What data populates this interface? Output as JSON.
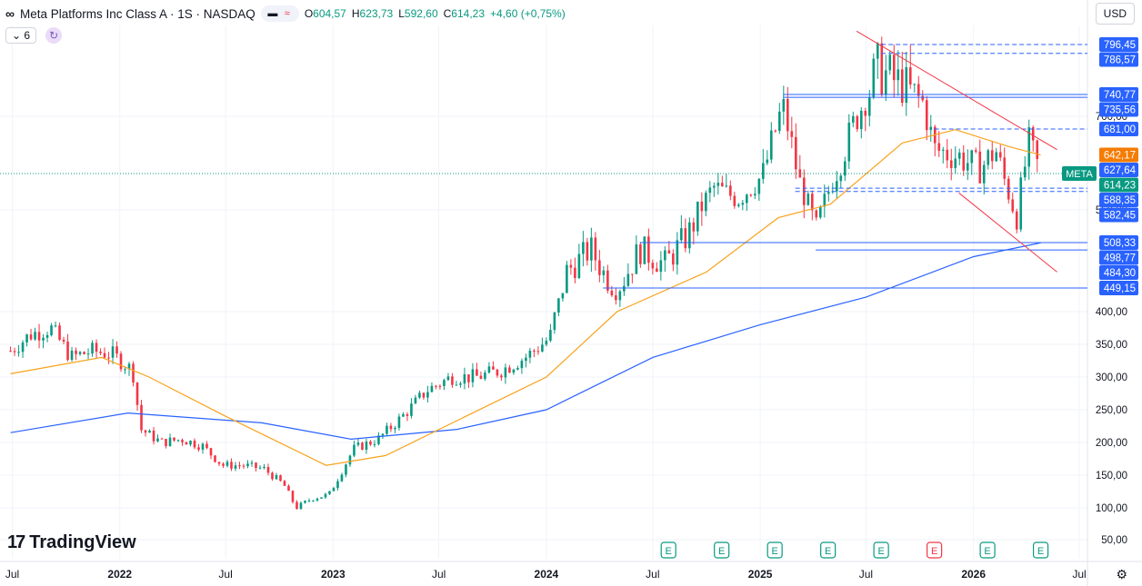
{
  "header": {
    "logo_text": "∞",
    "title": "Meta Platforms Inc Class A · 1S · NASDAQ",
    "pill_icons": [
      "▬",
      "≈"
    ],
    "ohlc": {
      "o_label": "O",
      "o": "604,57",
      "h_label": "H",
      "h": "623,73",
      "l_label": "L",
      "l": "592,60",
      "c_label": "C",
      "c": "614,23",
      "change": "+4,60 (+0,75%)"
    },
    "indicator_count": "6",
    "chevron": "⌄"
  },
  "currency": "USD",
  "branding": {
    "logo_glyph": "17",
    "name": "TradingView"
  },
  "settings_icon": "⚙",
  "colors": {
    "up": "#089981",
    "down": "#f23645",
    "ma50": "#f7a21b",
    "ma200": "#2962ff",
    "level": "#2962ff",
    "trend": "#f23645"
  },
  "chart_data": {
    "type": "candlestick",
    "symbol": "META",
    "ylim": [
      30,
      830
    ],
    "y_ticks": [
      50,
      100,
      150,
      200,
      250,
      300,
      350,
      400,
      550,
      700
    ],
    "y_tick_labels": [
      "50,00",
      "100,00",
      "150,00",
      "200,00",
      "250,00",
      "300,00",
      "350,00",
      "400,00",
      "550,00",
      "700,00"
    ],
    "x_ticks": [
      "2021-07",
      "2022-01",
      "2022-07",
      "2023-01",
      "2023-07",
      "2024-01",
      "2024-07",
      "2025-01",
      "2025-07",
      "2026-01",
      "2026-07"
    ],
    "x_tick_labels": [
      "Jul",
      "2022",
      "Jul",
      "2023",
      "Jul",
      "2024",
      "Jul",
      "2025",
      "Jul",
      "2026",
      "Jul"
    ],
    "close_path": [
      [
        "2021-06-28",
        340
      ],
      [
        "2021-08-01",
        365
      ],
      [
        "2021-09-05",
        375
      ],
      [
        "2021-10-10",
        330
      ],
      [
        "2021-11-14",
        340
      ],
      [
        "2021-12-19",
        335
      ],
      [
        "2022-01-23",
        310
      ],
      [
        "2022-02-06",
        220
      ],
      [
        "2022-03-13",
        200
      ],
      [
        "2022-04-17",
        205
      ],
      [
        "2022-05-22",
        195
      ],
      [
        "2022-06-26",
        165
      ],
      [
        "2022-07-31",
        165
      ],
      [
        "2022-09-04",
        160
      ],
      [
        "2022-10-09",
        135
      ],
      [
        "2022-10-30",
        100
      ],
      [
        "2022-11-27",
        115
      ],
      [
        "2022-12-25",
        120
      ],
      [
        "2023-02-05",
        190
      ],
      [
        "2023-03-19",
        205
      ],
      [
        "2023-04-30",
        240
      ],
      [
        "2023-06-11",
        280
      ],
      [
        "2023-07-23",
        300
      ],
      [
        "2023-09-03",
        300
      ],
      [
        "2023-10-15",
        310
      ],
      [
        "2023-11-26",
        330
      ],
      [
        "2024-01-07",
        360
      ],
      [
        "2024-02-04",
        470
      ],
      [
        "2024-03-17",
        500
      ],
      [
        "2024-04-28",
        440
      ],
      [
        "2024-06-09",
        500
      ],
      [
        "2024-07-21",
        480
      ],
      [
        "2024-09-01",
        520
      ],
      [
        "2024-10-13",
        590
      ],
      [
        "2024-11-24",
        570
      ],
      [
        "2025-01-05",
        610
      ],
      [
        "2025-02-09",
        720
      ],
      [
        "2025-03-09",
        600
      ],
      [
        "2025-04-06",
        520
      ],
      [
        "2025-05-04",
        600
      ],
      [
        "2025-06-15",
        700
      ],
      [
        "2025-07-20",
        770
      ],
      [
        "2025-08-31",
        750
      ],
      [
        "2025-10-05",
        730
      ],
      [
        "2025-10-26",
        650
      ],
      [
        "2025-12-07",
        640
      ],
      [
        "2026-01-11",
        620
      ],
      [
        "2026-02-08",
        650
      ],
      [
        "2026-03-15",
        540
      ],
      [
        "2026-04-05",
        660
      ],
      [
        "2026-04-26",
        614
      ]
    ],
    "ma50": [
      [
        "2021-06-28",
        305
      ],
      [
        "2021-12-01",
        330
      ],
      [
        "2022-02-20",
        300
      ],
      [
        "2022-07-01",
        240
      ],
      [
        "2022-12-20",
        165
      ],
      [
        "2023-04-01",
        180
      ],
      [
        "2023-10-01",
        260
      ],
      [
        "2024-01-01",
        300
      ],
      [
        "2024-05-01",
        400
      ],
      [
        "2024-10-01",
        470
      ],
      [
        "2025-02-01",
        540
      ],
      [
        "2025-05-01",
        560
      ],
      [
        "2025-09-01",
        660
      ],
      [
        "2025-12-01",
        680
      ],
      [
        "2026-03-01",
        655
      ],
      [
        "2026-04-26",
        642
      ]
    ],
    "ma200": [
      [
        "2021-06-28",
        215
      ],
      [
        "2022-01-15",
        245
      ],
      [
        "2022-09-01",
        230
      ],
      [
        "2023-02-01",
        205
      ],
      [
        "2023-08-01",
        220
      ],
      [
        "2024-01-01",
        250
      ],
      [
        "2024-07-01",
        330
      ],
      [
        "2025-01-01",
        380
      ],
      [
        "2025-07-01",
        430
      ],
      [
        "2026-01-01",
        490
      ],
      [
        "2026-04-26",
        508
      ]
    ],
    "price_labels": [
      {
        "value": 796.45,
        "text": "796,45",
        "style": "blue"
      },
      {
        "value": 786.57,
        "text": "786,57",
        "style": "blue"
      },
      {
        "value": 740.77,
        "text": "740,77",
        "style": "blue"
      },
      {
        "value": 735.56,
        "text": "735,56",
        "style": "blue"
      },
      {
        "value": 681.0,
        "text": "681,00",
        "style": "blue"
      },
      {
        "value": 642.17,
        "text": "642,17",
        "style": "orange"
      },
      {
        "value": 627.64,
        "text": "627,64",
        "style": "blue"
      },
      {
        "value": 614.23,
        "text": "614,23",
        "style": "green"
      },
      {
        "value": 588.35,
        "text": "588,35",
        "style": "blue"
      },
      {
        "value": 582.45,
        "text": "582,45",
        "style": "blue"
      },
      {
        "value": 508.33,
        "text": "508,33",
        "style": "blue"
      },
      {
        "value": 498.77,
        "text": "498,77",
        "style": "blue"
      },
      {
        "value": 484.3,
        "text": "484,30",
        "style": "blue"
      },
      {
        "value": 449.15,
        "text": "449,15",
        "style": "blue"
      }
    ],
    "levels": [
      {
        "value": 796.45,
        "from": "2025-07-27",
        "dashed": true
      },
      {
        "value": 786.57,
        "from": "2025-07-27",
        "dashed": true
      },
      {
        "value": 740.77,
        "from": "2025-02-09",
        "dashed": false
      },
      {
        "value": 735.56,
        "from": "2025-02-09",
        "dashed": false
      },
      {
        "value": 681.0,
        "from": "2025-10-26",
        "dashed": true
      },
      {
        "value": 588.35,
        "from": "2025-03-02",
        "dashed": true
      },
      {
        "value": 582.45,
        "from": "2025-03-02",
        "dashed": true
      },
      {
        "value": 508.33,
        "from": "2024-06-09",
        "dashed": false
      },
      {
        "value": 498.77,
        "from": "2025-04-06",
        "dashed": false
      },
      {
        "value": 449.15,
        "from": "2024-04-07",
        "dashed": false
      }
    ],
    "trend_lines": [
      {
        "from": [
          "2025-06-15",
          820
        ],
        "to": [
          "2026-05-24",
          650
        ]
      },
      {
        "from": [
          "2025-12-07",
          580
        ],
        "to": [
          "2026-05-24",
          470
        ]
      }
    ],
    "last_price": {
      "symbol": "META",
      "value": 614.23
    },
    "earnings_markers": [
      {
        "date": "2024-07-28",
        "label": "E",
        "style": "up"
      },
      {
        "date": "2024-10-27",
        "label": "E",
        "style": "up"
      },
      {
        "date": "2025-01-26",
        "label": "E",
        "style": "up"
      },
      {
        "date": "2025-04-27",
        "label": "E",
        "style": "up"
      },
      {
        "date": "2025-07-27",
        "label": "E",
        "style": "up"
      },
      {
        "date": "2025-10-26",
        "label": "E",
        "style": "down"
      },
      {
        "date": "2026-01-25",
        "label": "E",
        "style": "up"
      },
      {
        "date": "2026-04-26",
        "label": "E",
        "style": "up"
      }
    ]
  }
}
